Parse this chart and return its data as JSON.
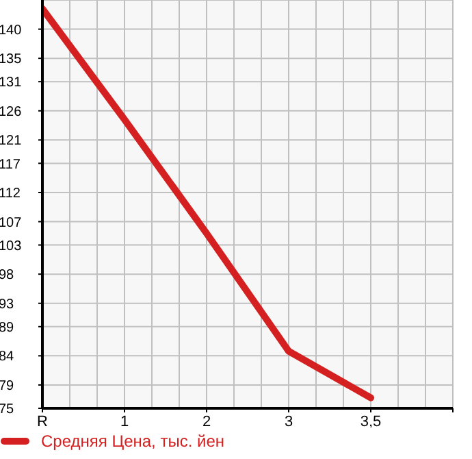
{
  "chart_data": {
    "type": "line",
    "categories": [
      "R",
      "1",
      "2",
      "3",
      "3,5",
      null
    ],
    "series": [
      {
        "name": "Средняя Цена, тыс. йен",
        "color": "#d42020",
        "values": [
          143.5,
          124.5,
          105,
          84.8,
          76.8,
          null
        ]
      }
    ],
    "ylim": [
      75,
      145
    ],
    "yticks": [
      75,
      79,
      84,
      89,
      93,
      98,
      103,
      107,
      112,
      117,
      121,
      126,
      131,
      135,
      140
    ],
    "grid": true,
    "legend": "bottom",
    "marker": "none"
  }
}
